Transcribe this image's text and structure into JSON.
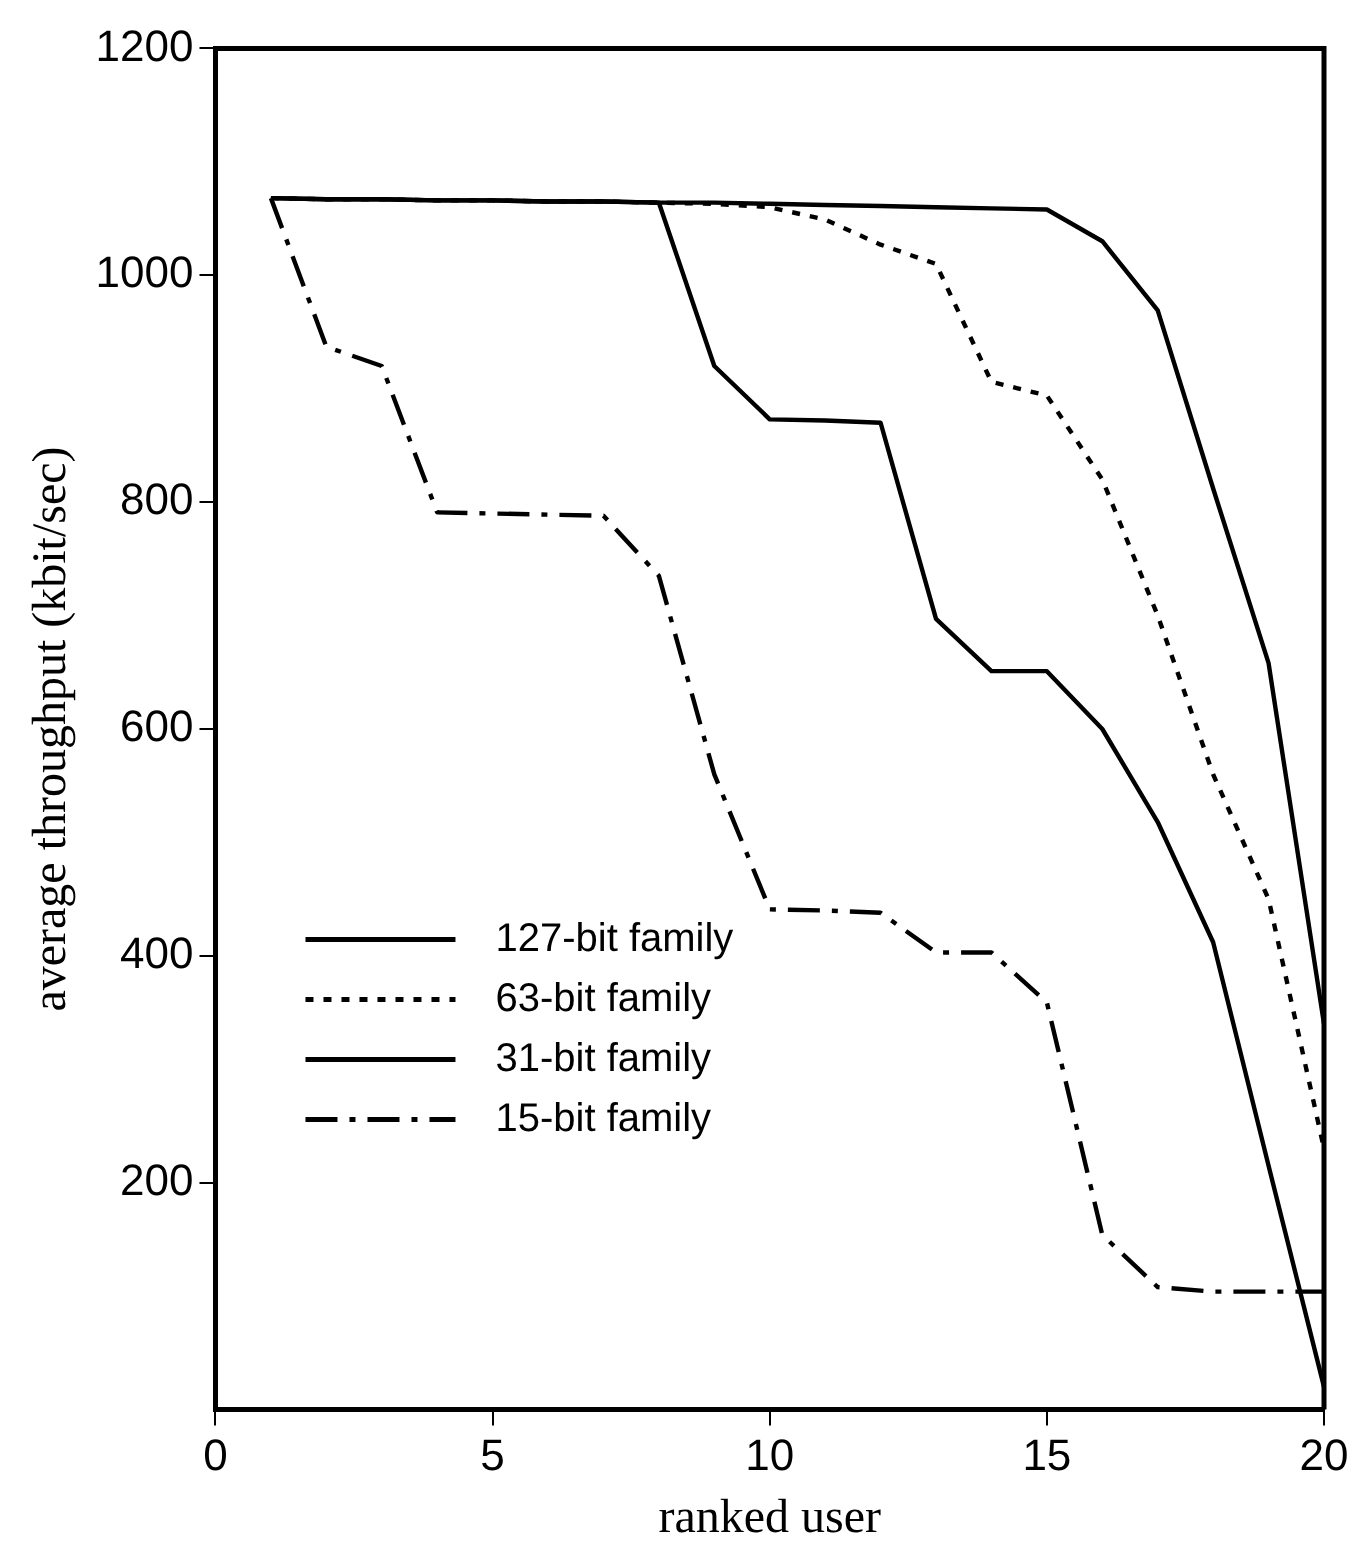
{
  "chart_data": {
    "type": "line",
    "xlabel": "ranked user",
    "ylabel": "average throughput (kbit/sec)",
    "xlim": [
      0,
      20
    ],
    "xticks": [
      0,
      5,
      10,
      15,
      20
    ],
    "ylim": [
      0,
      1200
    ],
    "yticks": [
      200,
      400,
      600,
      800,
      1000,
      1200
    ],
    "grid": false,
    "legend": "bottom left",
    "marker": "none",
    "x": [
      1,
      2,
      3,
      4,
      5,
      6,
      7,
      8,
      9,
      10,
      11,
      12,
      13,
      14,
      15,
      16,
      17,
      18,
      19,
      20
    ],
    "series": [
      {
        "name": "127-bit family",
        "color": "#000000",
        "line_style": "solid",
        "values": [
          1068,
          1067,
          1067,
          1066,
          1066,
          1065,
          1065,
          1064,
          1064,
          1063,
          1062,
          1061,
          1060,
          1059,
          1058,
          1030,
          969,
          812,
          658,
          340
        ]
      },
      {
        "name": "63-bit family",
        "color": "#000000",
        "line_style": "dotted",
        "values": [
          1068,
          1067,
          1067,
          1066,
          1066,
          1065,
          1065,
          1064,
          1063,
          1060,
          1049,
          1027,
          1010,
          906,
          894,
          820,
          700,
          560,
          450,
          230
        ]
      },
      {
        "name": "31-bit family",
        "color": "#000000",
        "line_style": "solid",
        "values": [
          1068,
          1067,
          1067,
          1066,
          1066,
          1065,
          1065,
          1064,
          920,
          873,
          872,
          870,
          697,
          651,
          651,
          600,
          518,
          412,
          215,
          20
        ]
      },
      {
        "name": "15-bit family",
        "color": "#000000",
        "line_style": "dashed",
        "values": [
          1068,
          937,
          920,
          791,
          790,
          789,
          788,
          735,
          560,
          441,
          440,
          438,
          403,
          403,
          359,
          154,
          108,
          104,
          104,
          104
        ]
      }
    ]
  }
}
